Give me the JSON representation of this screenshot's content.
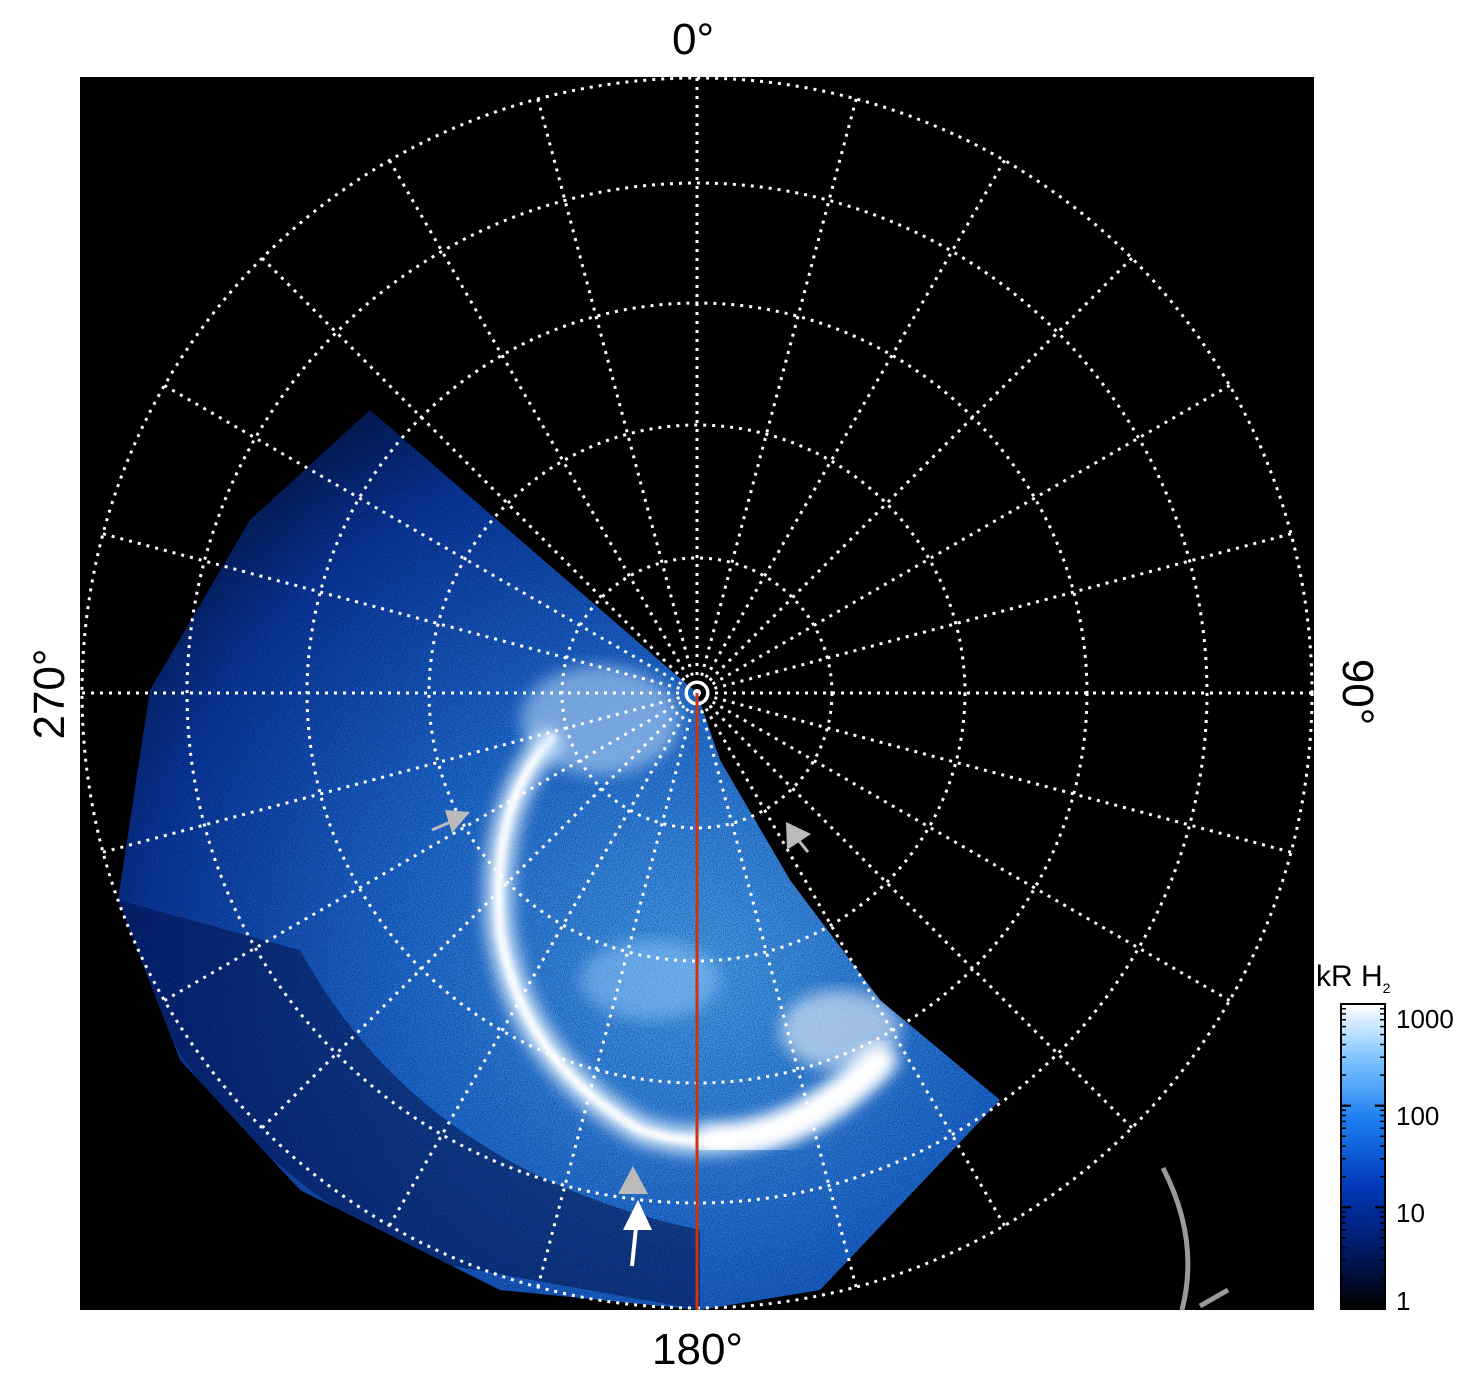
{
  "axes": {
    "top_label": "0°",
    "right_label": "90°",
    "bottom_label": "180°",
    "left_label": "270°"
  },
  "colorbar": {
    "title_main": "kR H",
    "title_sub": "2",
    "ticks": [
      "1000",
      "100",
      "10",
      "1"
    ],
    "scale": "log",
    "range": [
      1,
      1000
    ],
    "colors": [
      "#000000",
      "#001a66",
      "#0038b8",
      "#1c7ef0",
      "#7ec4ff",
      "#ffffff"
    ]
  },
  "plot": {
    "background": "#000000",
    "grid_color": "#ffffff",
    "meridian_line_color": "#cc3311",
    "arrow_colors": [
      "#bbbbbb",
      "#ffffff"
    ]
  }
}
